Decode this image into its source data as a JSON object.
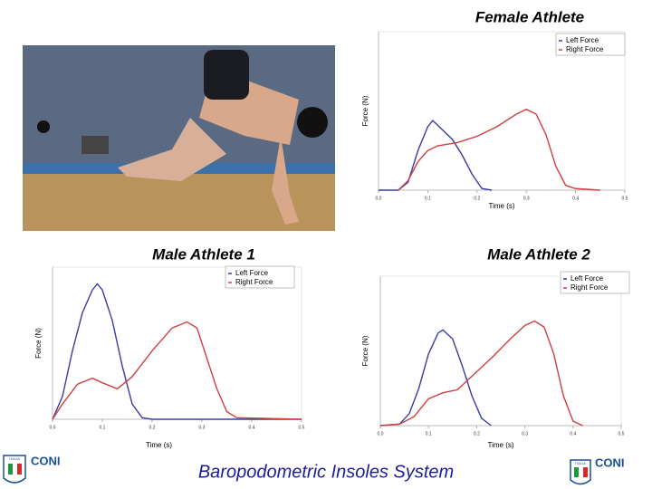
{
  "chart_data": [
    {
      "type": "line",
      "title": "Female Athlete",
      "ylabel": "Force (N)",
      "xlabel": "Time (s)",
      "xlim": [
        0,
        0.5
      ],
      "ylim": [
        0,
        100
      ],
      "xticks": [
        {
          "value": 0,
          "label": "0.0"
        },
        {
          "value": 0.1,
          "label": "0.1"
        },
        {
          "value": 0.2,
          "label": "0.2"
        },
        {
          "value": 0.3,
          "label": "0.3"
        },
        {
          "value": 0.4,
          "label": "0.4"
        },
        {
          "value": 0.5,
          "label": "0.5"
        }
      ],
      "series": [
        {
          "name": "Left Force",
          "color": "#3b3ba6",
          "x": [
            0,
            0.04,
            0.06,
            0.08,
            0.1,
            0.11,
            0.13,
            0.15,
            0.17,
            0.19,
            0.21,
            0.23
          ],
          "values": [
            0,
            0,
            5,
            25,
            40,
            44,
            38,
            32,
            22,
            10,
            1,
            0
          ]
        },
        {
          "name": "Right Force",
          "color": "#cf3f3f",
          "x": [
            0.04,
            0.06,
            0.08,
            0.1,
            0.12,
            0.16,
            0.2,
            0.24,
            0.28,
            0.3,
            0.32,
            0.34,
            0.36,
            0.38,
            0.4,
            0.45
          ],
          "values": [
            0,
            6,
            18,
            25,
            28,
            30,
            34,
            40,
            48,
            51,
            48,
            35,
            15,
            3,
            1,
            0
          ]
        }
      ]
    },
    {
      "type": "line",
      "title": "Male Athlete 1",
      "ylabel": "Force (N)",
      "xlabel": "Time (s)",
      "xlim": [
        0,
        0.5
      ],
      "ylim": [
        0,
        100
      ],
      "xticks": [
        {
          "value": 0,
          "label": "0.0"
        },
        {
          "value": 0.1,
          "label": "0.1"
        },
        {
          "value": 0.2,
          "label": "0.2"
        },
        {
          "value": 0.3,
          "label": "0.3"
        },
        {
          "value": 0.4,
          "label": "0.4"
        },
        {
          "value": 0.5,
          "label": "0.5"
        }
      ],
      "series": [
        {
          "name": "Left Force",
          "color": "#3b3ba6",
          "x": [
            0,
            0.02,
            0.04,
            0.06,
            0.08,
            0.09,
            0.1,
            0.12,
            0.14,
            0.16,
            0.18,
            0.2,
            0.5
          ],
          "values": [
            0,
            15,
            45,
            70,
            85,
            89,
            85,
            65,
            35,
            10,
            1,
            0,
            0
          ]
        },
        {
          "name": "Right Force",
          "color": "#cf3f3f",
          "x": [
            0,
            0.02,
            0.05,
            0.08,
            0.1,
            0.13,
            0.16,
            0.2,
            0.24,
            0.27,
            0.29,
            0.31,
            0.33,
            0.35,
            0.37,
            0.5
          ],
          "values": [
            0,
            10,
            23,
            27,
            24,
            20,
            28,
            45,
            60,
            64,
            60,
            40,
            20,
            5,
            1,
            0
          ]
        }
      ]
    },
    {
      "type": "line",
      "title": "Male Athlete 2",
      "ylabel": "Force (N)",
      "xlabel": "Time (s)",
      "xlim": [
        0,
        0.5
      ],
      "ylim": [
        0,
        100
      ],
      "xticks": [
        {
          "value": 0,
          "label": "0.0"
        },
        {
          "value": 0.1,
          "label": "0.1"
        },
        {
          "value": 0.2,
          "label": "0.2"
        },
        {
          "value": 0.3,
          "label": "0.3"
        },
        {
          "value": 0.4,
          "label": "0.4"
        },
        {
          "value": 0.5,
          "label": "0.5"
        }
      ],
      "series": [
        {
          "name": "Left Force",
          "color": "#3b3ba6",
          "x": [
            0,
            0.04,
            0.06,
            0.08,
            0.1,
            0.12,
            0.13,
            0.15,
            0.17,
            0.19,
            0.21,
            0.23
          ],
          "values": [
            0,
            1,
            8,
            25,
            48,
            62,
            64,
            58,
            40,
            20,
            5,
            0
          ]
        },
        {
          "name": "Right Force",
          "color": "#cf3f3f",
          "x": [
            0,
            0.04,
            0.07,
            0.1,
            0.13,
            0.16,
            0.19,
            0.23,
            0.27,
            0.3,
            0.32,
            0.34,
            0.36,
            0.38,
            0.4,
            0.42
          ],
          "values": [
            0,
            1,
            6,
            18,
            22,
            24,
            33,
            45,
            58,
            67,
            70,
            66,
            48,
            20,
            3,
            0
          ]
        }
      ]
    }
  ],
  "footer": {
    "title": "Baropodometric Insoles System",
    "logo_left": {
      "flag": "ITALIA",
      "name": "CONI"
    },
    "logo_right": {
      "flag": "ITALIA",
      "name": "CONI"
    }
  }
}
